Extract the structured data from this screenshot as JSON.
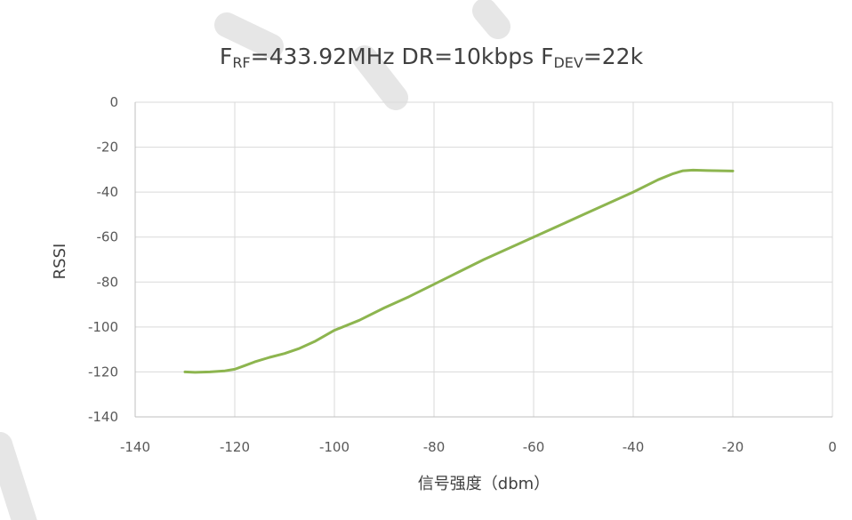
{
  "chart_data": {
    "type": "line",
    "title": {
      "parts": [
        {
          "text": "F"
        },
        {
          "text": "RF",
          "sub": true
        },
        {
          "text": "=433.92MHz  DR=10kbps  F"
        },
        {
          "text": "DEV",
          "sub": true
        },
        {
          "text": "=22k"
        }
      ]
    },
    "xlabel": "信号强度（dbm）",
    "ylabel": "RSSI",
    "xlim": [
      -140,
      0
    ],
    "ylim": [
      -140,
      0
    ],
    "xticks": [
      -140,
      -120,
      -100,
      -80,
      -60,
      -40,
      -20,
      0
    ],
    "yticks": [
      0,
      -20,
      -40,
      -60,
      -80,
      -100,
      -120,
      -140
    ],
    "grid": true,
    "legend": "none",
    "series": [
      {
        "color": "#8db54f",
        "x": [
          -130,
          -128,
          -125,
          -122,
          -120,
          -118,
          -116,
          -113,
          -110,
          -107,
          -104,
          -100,
          -95,
          -90,
          -85,
          -80,
          -75,
          -70,
          -65,
          -60,
          -55,
          -50,
          -45,
          -40,
          -35,
          -32,
          -30,
          -28,
          -25,
          -20
        ],
        "y": [
          -120,
          -120.2,
          -120,
          -119.5,
          -118.8,
          -117.2,
          -115.5,
          -113.5,
          -111.8,
          -109.5,
          -106.5,
          -101.5,
          -97,
          -91.5,
          -86.5,
          -81,
          -75.5,
          -70,
          -65,
          -60,
          -55,
          -50,
          -45,
          -40,
          -34.5,
          -31.8,
          -30.5,
          -30.2,
          -30.4,
          -30.6
        ]
      }
    ]
  }
}
